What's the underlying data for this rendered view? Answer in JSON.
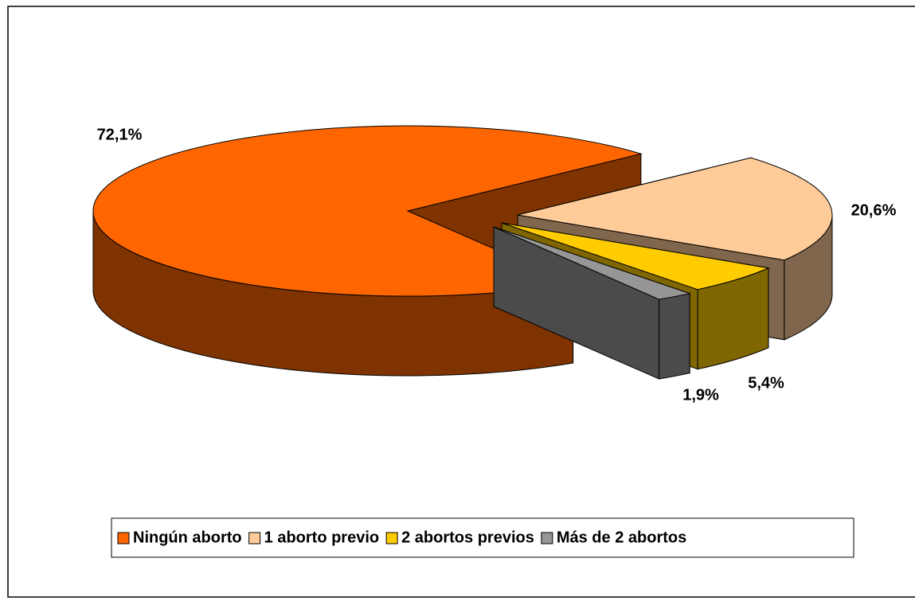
{
  "chart_data": {
    "type": "pie3d",
    "categories": [
      "Ningún aborto",
      "1 aborto previo",
      "2 abortos previos",
      "Más de 2 abortos"
    ],
    "values": [
      72.1,
      20.6,
      5.4,
      1.9
    ],
    "value_labels": [
      "72,1%",
      "20,6%",
      "5,4%",
      "1,9%"
    ],
    "colors": [
      "#FF6600",
      "#FFCC99",
      "#FFCC00",
      "#969696"
    ],
    "legend": "bottom"
  }
}
